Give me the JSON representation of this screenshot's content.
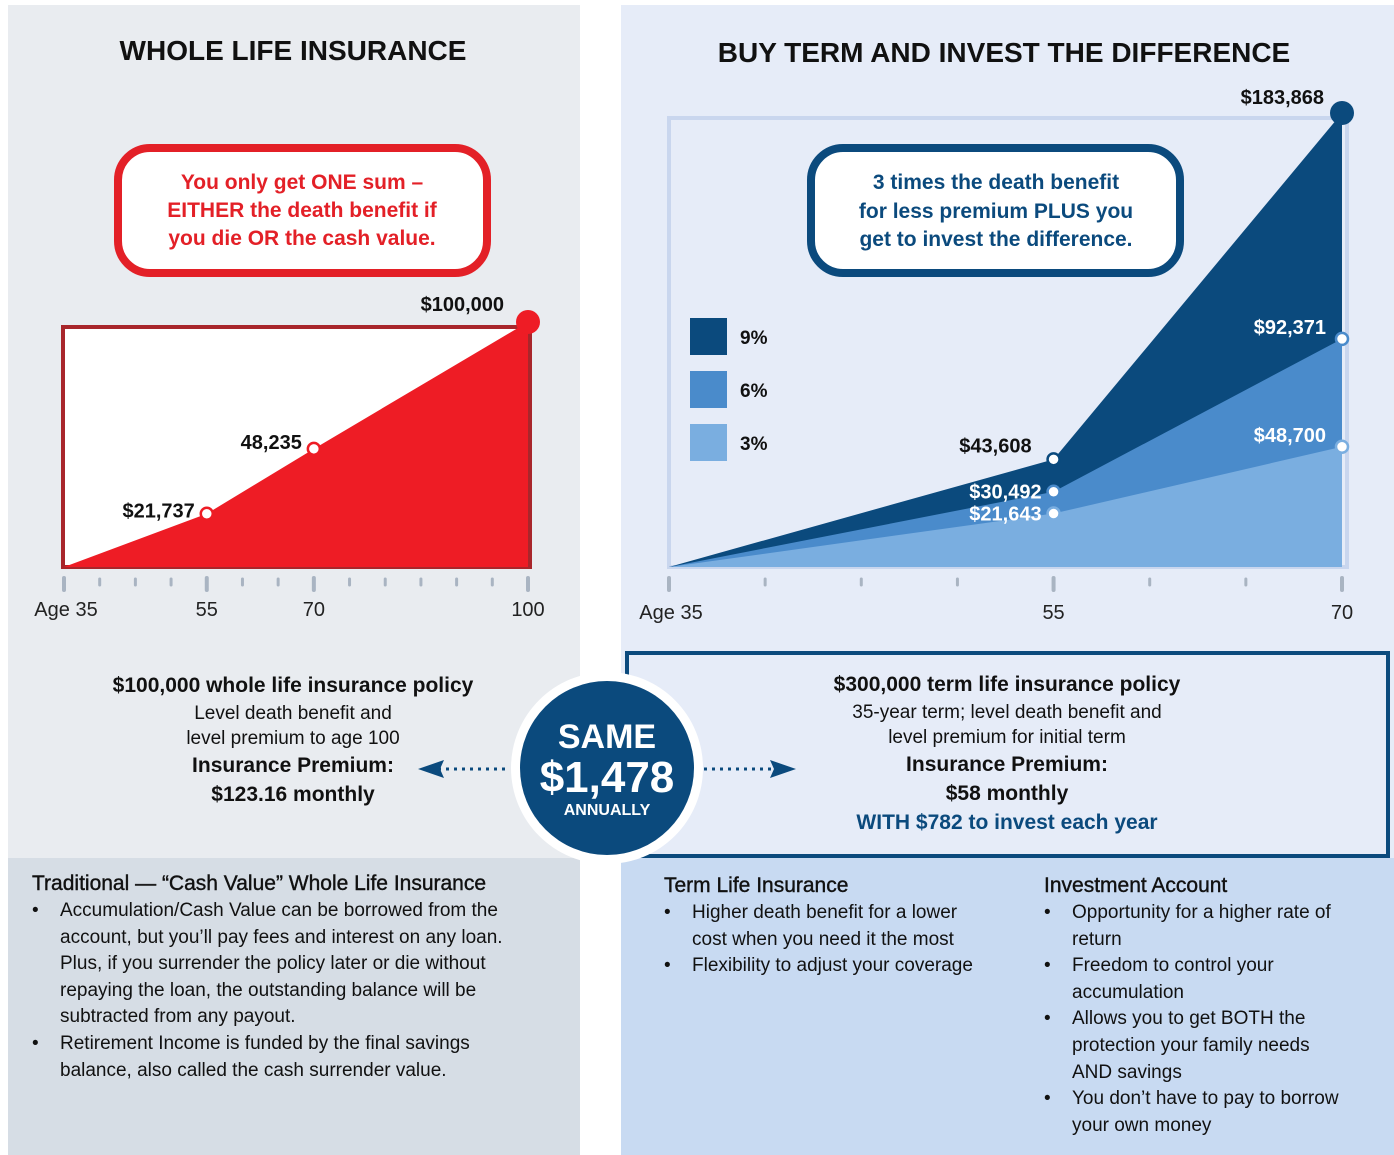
{
  "chart_data": [
    {
      "type": "area",
      "title": "WHOLE LIFE INSURANCE",
      "x": [
        35,
        55,
        70,
        100
      ],
      "values": [
        0,
        21737,
        48235,
        100000
      ],
      "value_labels": [
        null,
        "$21,737",
        "48,235",
        "$100,000"
      ],
      "color": "#ee1c25",
      "xlim": [
        35,
        100
      ],
      "ylim": [
        0,
        100000
      ],
      "xticks": [
        {
          "value": 35,
          "label": "Age 35"
        },
        55,
        70,
        100
      ],
      "minor_xticks": [
        40,
        45,
        50,
        60,
        65,
        75,
        80,
        85,
        90,
        95
      ]
    },
    {
      "type": "area",
      "title": "BUY TERM AND INVEST THE DIFFERENCE",
      "x": [
        35,
        55,
        70
      ],
      "series": [
        {
          "name": "9%",
          "color": "#0b4a7d",
          "values": [
            0,
            43608,
            183868
          ],
          "value_labels": [
            null,
            "$43,608",
            "$183,868"
          ]
        },
        {
          "name": "6%",
          "color": "#4a8bcb",
          "values": [
            0,
            30492,
            92371
          ],
          "value_labels": [
            null,
            "$30,492",
            "$92,371"
          ]
        },
        {
          "name": "3%",
          "color": "#7aaee0",
          "values": [
            0,
            21643,
            48700
          ],
          "value_labels": [
            null,
            "$21,643",
            "$48,700"
          ]
        }
      ],
      "xlim": [
        35,
        70
      ],
      "ylim": [
        0,
        183868
      ],
      "xticks": [
        {
          "value": 35,
          "label": "Age 35"
        },
        55,
        70
      ],
      "minor_xticks": [
        40,
        45,
        50,
        60,
        65
      ]
    }
  ],
  "left": {
    "callout": [
      "You only get ONE sum –",
      "EITHER the death benefit if",
      "you die OR the cash value."
    ],
    "policy": {
      "title": "$100,000 whole life insurance policy",
      "lines": [
        "Level death benefit and",
        "level premium to age 100"
      ],
      "premium_label": "Insurance Premium:",
      "premium": "$123.16 monthly"
    },
    "bottom": {
      "heading": "Traditional — “Cash Value” Whole Life Insurance",
      "bullets": [
        "Accumulation/Cash Value can be borrowed from the account, but you’ll pay fees and interest on any loan. Plus, if you surrender the policy later or die without repaying the loan, the outstanding balance will be subtracted from any payout.",
        "Retirement Income is funded by the final savings balance, also called the cash surrender value."
      ]
    }
  },
  "center": {
    "line1": "SAME",
    "amount": "$1,478",
    "line3": "ANNUALLY"
  },
  "right": {
    "callout": [
      "3 times the death benefit",
      "for less premium PLUS you",
      "get to invest the difference."
    ],
    "policy": {
      "title": "$300,000 term life insurance policy",
      "lines": [
        "35-year term; level death benefit and",
        "level premium for initial term"
      ],
      "premium_label": "Insurance Premium:",
      "premium": "$58 monthly",
      "extra": "WITH $782 to invest each year"
    },
    "columns": [
      {
        "heading": "Term Life Insurance",
        "bullets": [
          "Higher death benefit for a lower cost when you need it the most",
          "Flexibility to adjust your coverage"
        ]
      },
      {
        "heading": "Investment Account",
        "bullets": [
          "Opportunity for a higher rate of return",
          "Freedom to control your accumulation",
          "Allows you to get BOTH the protection your family needs AND savings",
          "You don’t have to pay to borrow your own money"
        ]
      }
    ]
  }
}
